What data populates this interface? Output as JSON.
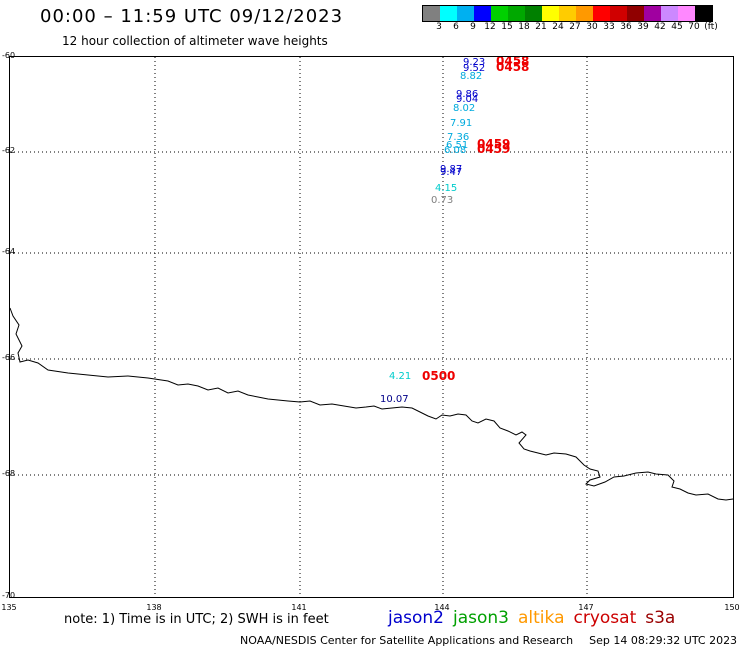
{
  "header": {
    "title": "00:00 – 11:59 UTC 09/12/2023",
    "subtitle": "12 hour collection of altimeter wave heights"
  },
  "colorbar": {
    "colors": [
      "#808080",
      "#00ffff",
      "#00b0f0",
      "#0000ff",
      "#00d000",
      "#00a800",
      "#008000",
      "#ffff00",
      "#ffcc00",
      "#ff9900",
      "#ff0000",
      "#d00000",
      "#900000",
      "#a000a0",
      "#cc88ff",
      "#ff88ff",
      "#000000"
    ],
    "labels": [
      "3",
      "6",
      "9",
      "12",
      "15",
      "18",
      "21",
      "24",
      "27",
      "30",
      "33",
      "36",
      "39",
      "42",
      "45",
      "70",
      "(ft)"
    ]
  },
  "axes": {
    "lat_labels": [
      "-60",
      "-62",
      "-64",
      "-66",
      "-68",
      "-70"
    ],
    "lon_labels": [
      "135",
      "138",
      "141",
      "144",
      "147",
      "150"
    ]
  },
  "observations": [
    {
      "text": "9.23",
      "color": "#0000cc"
    },
    {
      "text": "9.52",
      "color": "#0000cc"
    },
    {
      "text": "8.82",
      "color": "#00aadd"
    },
    {
      "text": "0458",
      "color": "#ee0000"
    },
    {
      "text": "0458",
      "color": "#ee0000"
    },
    {
      "text": "9.86",
      "color": "#0000cc"
    },
    {
      "text": "9.04",
      "color": "#0000cc"
    },
    {
      "text": "8.02",
      "color": "#00aadd"
    },
    {
      "text": "7.91",
      "color": "#00aadd"
    },
    {
      "text": "7.36",
      "color": "#00aadd"
    },
    {
      "text": "6.51",
      "color": "#00aadd"
    },
    {
      "text": "6.08",
      "color": "#00aadd"
    },
    {
      "text": "0459",
      "color": "#ee0000"
    },
    {
      "text": "0459",
      "color": "#ee0000"
    },
    {
      "text": "9.87",
      "color": "#0000cc"
    },
    {
      "text": "9.47",
      "color": "#0000cc"
    },
    {
      "text": "4.15",
      "color": "#00cccc"
    },
    {
      "text": "0.73",
      "color": "#808080"
    },
    {
      "text": "4.21",
      "color": "#00cccc"
    },
    {
      "text": "0500",
      "color": "#ee0000"
    },
    {
      "text": "10.07",
      "color": "#000088"
    }
  ],
  "footer": {
    "note": "note: 1) Time is in UTC; 2) SWH is in feet",
    "satellites": [
      {
        "name": "jason2",
        "color": "#0000cc"
      },
      {
        "name": "jason3",
        "color": "#00a000"
      },
      {
        "name": "altika",
        "color": "#ff9900"
      },
      {
        "name": "cryosat",
        "color": "#cc0000"
      },
      {
        "name": "s3a",
        "color": "#990000"
      }
    ],
    "credit": "NOAA/NESDIS Center for Satellite Applications and Research",
    "timestamp": "Sep 14 08:29:32 UTC 2023"
  }
}
